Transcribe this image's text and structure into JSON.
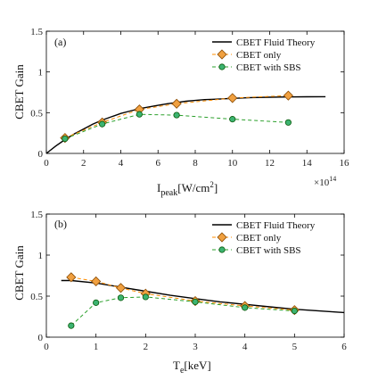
{
  "chart_data": [
    {
      "type": "line",
      "panel_label": "(a)",
      "xlabel": "I",
      "xlabel_sub": "peak",
      "xlabel_unit": "[W/cm",
      "xlabel_unit_sup": "2",
      "xlabel_unit_end": "]",
      "ylabel": "CBET Gain",
      "x_multiplier": "×10",
      "x_multiplier_exp": "14",
      "xlim": [
        0,
        16
      ],
      "ylim": [
        0,
        1.5
      ],
      "xticks": [
        0,
        2,
        4,
        6,
        8,
        10,
        12,
        14,
        16
      ],
      "xtick_labels": [
        "0",
        "2",
        "4",
        "6",
        "8",
        "10",
        "12",
        "14",
        "16"
      ],
      "yticks": [
        0,
        0.5,
        1,
        1.5
      ],
      "ytick_labels": [
        "0",
        "0.5",
        "1",
        "1.5"
      ],
      "legend_position": "top-right",
      "series": [
        {
          "name": "CBET Fluid Theory",
          "style": "solid",
          "color": "#000000",
          "marker": "none",
          "x": [
            0,
            0.5,
            1,
            1.5,
            2,
            2.5,
            3,
            3.5,
            4,
            4.5,
            5,
            5.5,
            6,
            6.5,
            7,
            7.5,
            8,
            8.5,
            9,
            9.5,
            10,
            11,
            12,
            13,
            14,
            15
          ],
          "y": [
            0.0,
            0.09,
            0.17,
            0.24,
            0.3,
            0.36,
            0.41,
            0.45,
            0.49,
            0.52,
            0.55,
            0.57,
            0.59,
            0.61,
            0.625,
            0.64,
            0.65,
            0.66,
            0.665,
            0.67,
            0.675,
            0.685,
            0.69,
            0.693,
            0.695,
            0.696
          ]
        },
        {
          "name": "CBET only",
          "style": "dashed",
          "color": "#ff8c00",
          "marker": "diamond",
          "marker_fill": "#f0a040",
          "x": [
            1,
            3,
            5,
            7,
            10,
            13
          ],
          "y": [
            0.19,
            0.38,
            0.54,
            0.61,
            0.68,
            0.71
          ]
        },
        {
          "name": "CBET with SBS",
          "style": "dashed",
          "color": "#2ca02c",
          "marker": "circle",
          "marker_fill": "#3cb371",
          "x": [
            1,
            3,
            5,
            7,
            10,
            13
          ],
          "y": [
            0.18,
            0.36,
            0.48,
            0.47,
            0.42,
            0.38
          ]
        }
      ]
    },
    {
      "type": "line",
      "panel_label": "(b)",
      "xlabel": "T",
      "xlabel_sub": "e",
      "xlabel_unit": "[keV]",
      "ylabel": "CBET Gain",
      "xlim": [
        0,
        6
      ],
      "ylim": [
        0,
        1.5
      ],
      "xticks": [
        0,
        1,
        2,
        3,
        4,
        5,
        6
      ],
      "xtick_labels": [
        "0",
        "1",
        "2",
        "3",
        "4",
        "5",
        "6"
      ],
      "yticks": [
        0,
        0.5,
        1,
        1.5
      ],
      "ytick_labels": [
        "0",
        "0.5",
        "1",
        "1.5"
      ],
      "legend_position": "top-right",
      "series": [
        {
          "name": "CBET Fluid Theory",
          "style": "solid",
          "color": "#000000",
          "marker": "none",
          "x": [
            0.3,
            0.5,
            1,
            1.5,
            2,
            2.5,
            3,
            3.5,
            4,
            4.5,
            5,
            5.5,
            6
          ],
          "y": [
            0.69,
            0.69,
            0.66,
            0.61,
            0.56,
            0.51,
            0.47,
            0.43,
            0.4,
            0.37,
            0.34,
            0.32,
            0.3
          ]
        },
        {
          "name": "CBET only",
          "style": "dashed",
          "color": "#ff8c00",
          "marker": "diamond",
          "marker_fill": "#f0a040",
          "x": [
            0.5,
            1,
            1.5,
            2,
            3,
            4,
            5
          ],
          "y": [
            0.73,
            0.68,
            0.6,
            0.53,
            0.44,
            0.38,
            0.33
          ]
        },
        {
          "name": "CBET with SBS",
          "style": "dashed",
          "color": "#2ca02c",
          "marker": "circle",
          "marker_fill": "#3cb371",
          "x": [
            0.5,
            1,
            1.5,
            2,
            3,
            4,
            5
          ],
          "y": [
            0.14,
            0.42,
            0.48,
            0.49,
            0.43,
            0.36,
            0.32
          ]
        }
      ]
    }
  ]
}
